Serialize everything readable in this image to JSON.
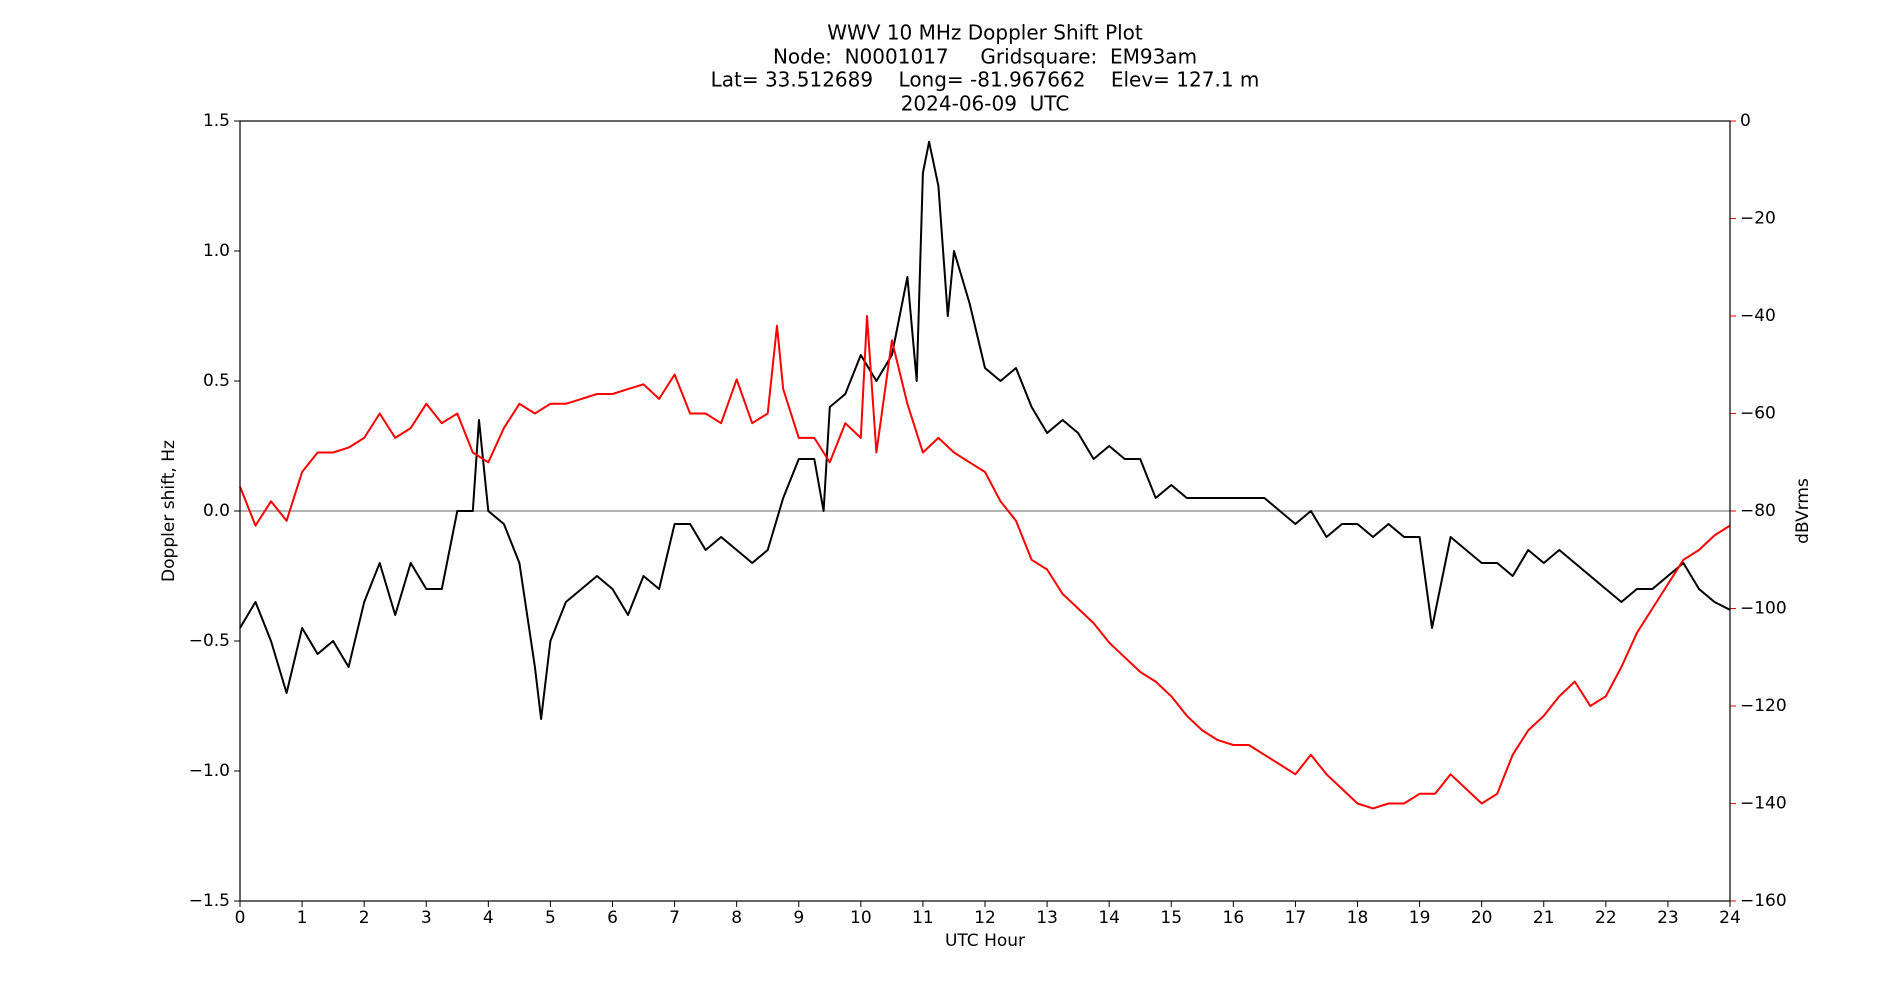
{
  "chart_data": {
    "type": "line",
    "title": "WWV 10 MHz Doppler Shift Plot",
    "subtitle": [
      "Node:  N0001017     Gridsquare:  EM93am",
      "Lat= 33.512689    Long= -81.967662    Elev= 127.1 m",
      "2024-06-09  UTC"
    ],
    "xlabel": "UTC Hour",
    "ylabel": "Doppler shift, Hz",
    "y2label": "dBVrms",
    "y2color": "#ff0000",
    "xlim": [
      0,
      24
    ],
    "xticks": [
      0,
      1,
      2,
      3,
      4,
      5,
      6,
      7,
      8,
      9,
      10,
      11,
      12,
      13,
      14,
      15,
      16,
      17,
      18,
      19,
      20,
      21,
      22,
      23,
      24
    ],
    "ylim": [
      -1.5,
      1.5
    ],
    "yticks": [
      {
        "value": -1.5,
        "label": "−1.5"
      },
      {
        "value": -1.0,
        "label": "−1.0"
      },
      {
        "value": -0.5,
        "label": "−0.5"
      },
      {
        "value": 0,
        "label": "0.0"
      },
      {
        "value": 0.5,
        "label": "0.5"
      },
      {
        "value": 1.0,
        "label": "1.0"
      },
      {
        "value": 1.5,
        "label": "1.5"
      }
    ],
    "y2lim": [
      -160,
      0
    ],
    "y2ticks": [
      {
        "value": -160,
        "label": "−160"
      },
      {
        "value": -140,
        "label": "−140"
      },
      {
        "value": -120,
        "label": "−120"
      },
      {
        "value": -100,
        "label": "−100"
      },
      {
        "value": -80,
        "label": "−80"
      },
      {
        "value": -60,
        "label": "−60"
      },
      {
        "value": -40,
        "label": "−40"
      },
      {
        "value": -20,
        "label": "−20"
      },
      0
    ],
    "hline": 0,
    "hline_color": "#888888",
    "series": [
      {
        "color": "#000000",
        "x": [
          0,
          0.25,
          0.5,
          0.75,
          1,
          1.25,
          1.5,
          1.75,
          2,
          2.25,
          2.5,
          2.75,
          3,
          3.25,
          3.5,
          3.75,
          3.85,
          4,
          4.25,
          4.5,
          4.75,
          4.85,
          5,
          5.25,
          5.5,
          5.75,
          6,
          6.25,
          6.5,
          6.75,
          7,
          7.25,
          7.5,
          7.75,
          8,
          8.25,
          8.5,
          8.75,
          9,
          9.25,
          9.4,
          9.5,
          9.75,
          10,
          10.25,
          10.5,
          10.75,
          10.9,
          11,
          11.1,
          11.25,
          11.4,
          11.5,
          11.75,
          12,
          12.25,
          12.5,
          12.75,
          13,
          13.25,
          13.5,
          13.75,
          14,
          14.25,
          14.5,
          14.75,
          15,
          15.25,
          15.5,
          15.75,
          16,
          16.25,
          16.5,
          16.75,
          17,
          17.25,
          17.5,
          17.75,
          18,
          18.25,
          18.5,
          18.75,
          19,
          19.2,
          19.5,
          19.75,
          20,
          20.25,
          20.5,
          20.75,
          21,
          21.25,
          21.5,
          21.75,
          22,
          22.25,
          22.5,
          22.75,
          23,
          23.25,
          23.5,
          23.75,
          24
        ],
        "values": [
          -0.45,
          -0.35,
          -0.5,
          -0.7,
          -0.45,
          -0.55,
          -0.5,
          -0.6,
          -0.35,
          -0.2,
          -0.4,
          -0.2,
          -0.3,
          -0.3,
          0,
          0,
          0.35,
          0,
          -0.05,
          -0.2,
          -0.6,
          -0.8,
          -0.5,
          -0.35,
          -0.3,
          -0.25,
          -0.3,
          -0.4,
          -0.25,
          -0.3,
          -0.05,
          -0.05,
          -0.15,
          -0.1,
          -0.15,
          -0.2,
          -0.15,
          0.05,
          0.2,
          0.2,
          0,
          0.4,
          0.45,
          0.6,
          0.5,
          0.6,
          0.9,
          0.5,
          1.3,
          1.42,
          1.25,
          0.75,
          1.0,
          0.8,
          0.55,
          0.5,
          0.55,
          0.4,
          0.3,
          0.35,
          0.3,
          0.2,
          0.25,
          0.2,
          0.2,
          0.05,
          0.1,
          0.05,
          0.05,
          0.05,
          0.05,
          0.05,
          0.05,
          0,
          -0.05,
          0,
          -0.1,
          -0.05,
          -0.05,
          -0.1,
          -0.05,
          -0.1,
          -0.1,
          -0.45,
          -0.1,
          -0.15,
          -0.2,
          -0.2,
          -0.25,
          -0.15,
          -0.2,
          -0.15,
          -0.2,
          -0.25,
          -0.3,
          -0.35,
          -0.3,
          -0.3,
          -0.25,
          -0.2,
          -0.3,
          -0.35,
          -0.38
        ]
      },
      {
        "color": "#ff0000",
        "axis": "y2",
        "x": [
          0,
          0.25,
          0.5,
          0.75,
          1,
          1.25,
          1.5,
          1.75,
          2,
          2.25,
          2.5,
          2.75,
          3,
          3.25,
          3.5,
          3.75,
          4,
          4.25,
          4.5,
          4.75,
          5,
          5.25,
          5.5,
          5.75,
          6,
          6.25,
          6.5,
          6.75,
          7,
          7.25,
          7.5,
          7.75,
          8,
          8.25,
          8.5,
          8.65,
          8.75,
          9,
          9.25,
          9.5,
          9.75,
          10,
          10.1,
          10.25,
          10.5,
          10.75,
          11,
          11.25,
          11.5,
          11.75,
          12,
          12.25,
          12.5,
          12.75,
          13,
          13.25,
          13.5,
          13.75,
          14,
          14.25,
          14.5,
          14.75,
          15,
          15.25,
          15.5,
          15.75,
          16,
          16.25,
          16.5,
          16.75,
          17,
          17.25,
          17.5,
          17.75,
          18,
          18.25,
          18.5,
          18.75,
          19,
          19.25,
          19.5,
          19.75,
          20,
          20.25,
          20.5,
          20.75,
          21,
          21.25,
          21.5,
          21.75,
          22,
          22.25,
          22.5,
          22.75,
          23,
          23.25,
          23.5,
          23.75,
          24
        ],
        "values": [
          -75,
          -83,
          -78,
          -82,
          -72,
          -68,
          -68,
          -67,
          -65,
          -60,
          -65,
          -63,
          -58,
          -62,
          -60,
          -68,
          -70,
          -63,
          -58,
          -60,
          -58,
          -58,
          -57,
          -56,
          -56,
          -55,
          -54,
          -57,
          -52,
          -60,
          -60,
          -62,
          -53,
          -62,
          -60,
          -42,
          -55,
          -65,
          -65,
          -70,
          -62,
          -65,
          -40,
          -68,
          -45,
          -58,
          -68,
          -65,
          -68,
          -70,
          -72,
          -78,
          -82,
          -90,
          -92,
          -97,
          -100,
          -103,
          -107,
          -110,
          -113,
          -115,
          -118,
          -122,
          -125,
          -127,
          -128,
          -128,
          -130,
          -132,
          -134,
          -130,
          -134,
          -137,
          -140,
          -141,
          -140,
          -140,
          -138,
          -138,
          -134,
          -137,
          -140,
          -138,
          -130,
          -125,
          -122,
          -118,
          -115,
          -120,
          -118,
          -112,
          -105,
          -100,
          -95,
          -90,
          -88,
          -85,
          -83
        ]
      }
    ]
  }
}
